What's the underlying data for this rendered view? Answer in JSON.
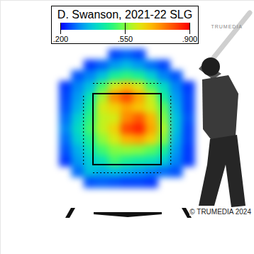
{
  "chart_data": {
    "type": "heatmap",
    "title": "D. Swanson, 2021-22 SLG",
    "logo": "TRUMEDIA",
    "source": "© TRUMEDIA 2024",
    "tick_labels": false,
    "xlim": [
      -3.1,
      3.1
    ],
    "ylim": [
      -1.02,
      6.14
    ],
    "x": [
      -1.5,
      -1.2,
      -0.9,
      -0.6,
      -0.3,
      0,
      0.3,
      0.6,
      0.9,
      1.2,
      1.5
    ],
    "y": [
      4.6,
      4.3,
      4.0,
      3.7,
      3.4,
      3.1,
      2.8,
      2.5,
      2.2,
      1.9,
      1.6,
      1.3,
      1.0
    ],
    "values": [
      [
        null,
        null,
        null,
        null,
        0.25,
        0.27,
        0.25,
        null,
        null,
        null,
        null
      ],
      [
        null,
        null,
        0.24,
        0.27,
        0.32,
        0.35,
        0.32,
        0.28,
        0.25,
        null,
        null
      ],
      [
        null,
        0.26,
        0.3,
        0.36,
        0.45,
        0.48,
        0.45,
        0.38,
        0.3,
        0.26,
        null
      ],
      [
        0.24,
        0.3,
        0.36,
        0.5,
        0.62,
        0.68,
        0.62,
        0.5,
        0.4,
        0.3,
        0.24
      ],
      [
        0.25,
        0.32,
        0.42,
        0.58,
        0.75,
        0.82,
        0.72,
        0.6,
        0.45,
        0.32,
        0.25
      ],
      [
        0.26,
        0.34,
        0.45,
        0.62,
        0.66,
        0.72,
        0.68,
        0.62,
        0.52,
        0.34,
        0.25
      ],
      [
        0.28,
        0.38,
        0.48,
        0.6,
        0.62,
        0.75,
        0.8,
        0.7,
        0.55,
        0.36,
        0.26
      ],
      [
        0.3,
        0.4,
        0.5,
        0.6,
        0.66,
        0.82,
        0.86,
        0.72,
        0.58,
        0.36,
        0.25
      ],
      [
        0.28,
        0.38,
        0.46,
        0.56,
        0.62,
        0.7,
        0.72,
        0.66,
        0.55,
        0.34,
        0.25
      ],
      [
        0.26,
        0.34,
        0.42,
        0.5,
        0.55,
        0.56,
        0.55,
        0.52,
        0.46,
        0.32,
        0.24
      ],
      [
        0.24,
        0.32,
        0.38,
        0.42,
        0.5,
        0.46,
        0.44,
        0.42,
        0.38,
        0.3,
        0.24
      ],
      [
        null,
        0.28,
        0.36,
        0.34,
        0.36,
        0.34,
        0.32,
        0.3,
        0.28,
        0.26,
        null
      ],
      [
        null,
        null,
        0.26,
        0.27,
        0.26,
        0.25,
        0.25,
        0.24,
        null,
        null,
        null
      ]
    ],
    "strike_zone": {
      "x": [
        -0.83,
        0.83
      ],
      "y": [
        1.5,
        3.5
      ]
    },
    "shadow_zone": {
      "x": [
        -1.07,
        1.06
      ],
      "y": [
        1.28,
        3.8
      ]
    },
    "colorbar": {
      "range": [
        0.2,
        0.9
      ],
      "ticks": [
        {
          "value": 0.2,
          "label": ".200"
        },
        {
          "value": 0.55,
          "label": ".550"
        },
        {
          "value": 0.9,
          "label": ".900"
        }
      ],
      "colors": [
        "#0000ff",
        "#00c8ff",
        "#00ff7f",
        "#ffff00",
        "#ff8000",
        "#ff0000"
      ]
    }
  }
}
